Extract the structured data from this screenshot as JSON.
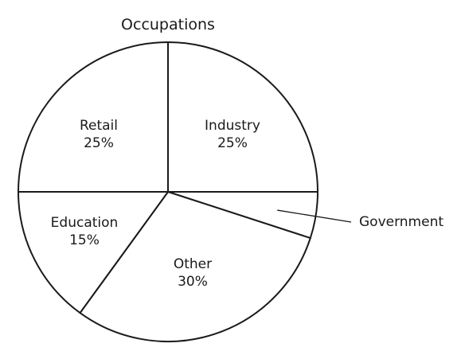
{
  "chart_data": {
    "type": "pie",
    "title": "Occupations",
    "slices": [
      {
        "label": "Industry",
        "value": 25,
        "value_label": "25%"
      },
      {
        "label": "Government",
        "value": 5,
        "value_label": ""
      },
      {
        "label": "Other",
        "value": 30,
        "value_label": "30%"
      },
      {
        "label": "Education",
        "value": 15,
        "value_label": "15%"
      },
      {
        "label": "Retail",
        "value": 25,
        "value_label": "25%"
      }
    ],
    "colors": {
      "fill": "#ffffff",
      "stroke": "#1a1a1a"
    }
  }
}
